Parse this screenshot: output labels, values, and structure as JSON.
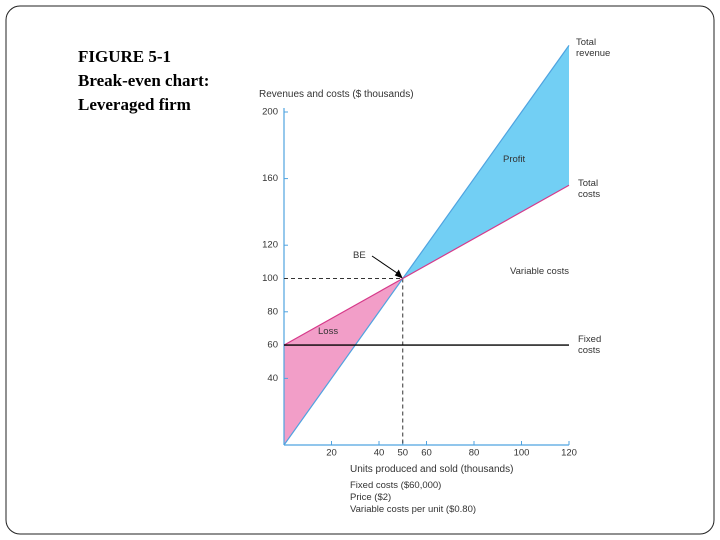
{
  "chart_data": {
    "type": "line",
    "title_lines": [
      "FIGURE 5-1",
      "Break-even chart:",
      "Leveraged firm"
    ],
    "y_label": "Revenues and costs ($ thousands)",
    "x_label": "Units produced and sold (thousands)",
    "notes": [
      "Fixed costs ($60,000)",
      "Price ($2)",
      "Variable costs per unit ($0.80)"
    ],
    "x": [
      0,
      50,
      120
    ],
    "series": [
      {
        "name": "Total revenue",
        "color": "#4fa3e0",
        "values": [
          0,
          100,
          240
        ]
      },
      {
        "name": "Total costs",
        "color": "#d63a8a",
        "values": [
          60,
          100,
          156
        ]
      },
      {
        "name": "Fixed costs",
        "color": "#000000",
        "values": [
          60,
          60,
          60
        ]
      }
    ],
    "areas": [
      {
        "label": "Profit",
        "color": "#72cff4"
      },
      {
        "label": "Loss",
        "color": "#f29ec8"
      }
    ],
    "annotations": {
      "break_even": "BE",
      "variable_costs": "Variable costs"
    },
    "break_even": {
      "x": 50,
      "y": 100
    },
    "xlim": [
      0,
      120
    ],
    "ylim": [
      0,
      200
    ],
    "xticks": [
      20,
      40,
      50,
      60,
      80,
      100,
      120
    ],
    "yticks": [
      40,
      60,
      80,
      100,
      120,
      160,
      200
    ]
  }
}
